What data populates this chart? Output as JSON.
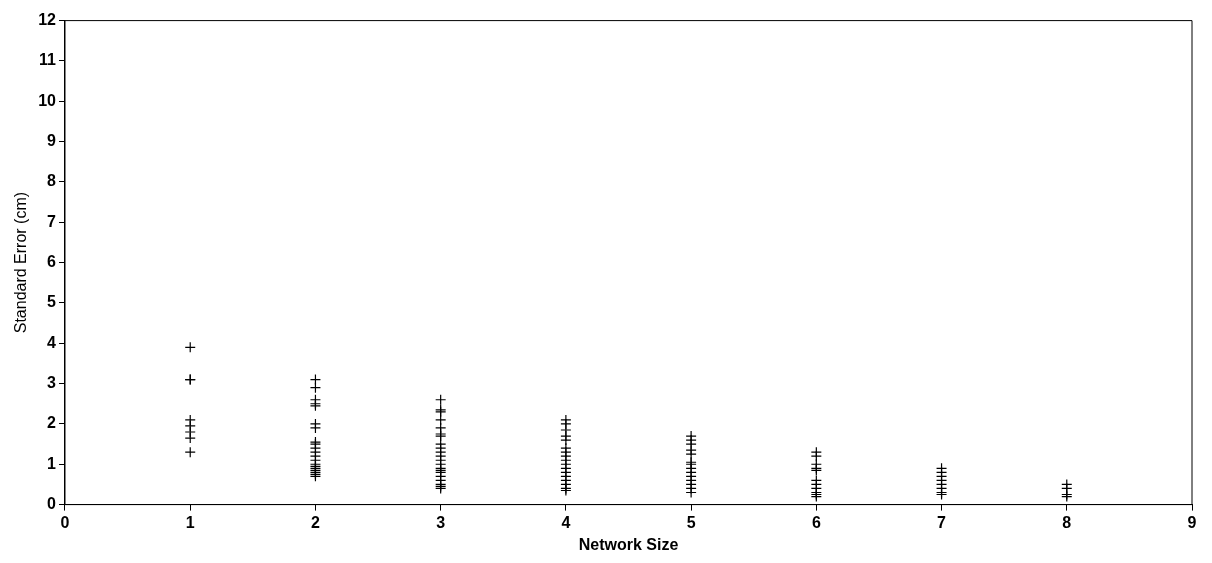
{
  "chart_data": {
    "type": "scatter",
    "xlabel": "Network Size",
    "ylabel": "Standard Error (cm)",
    "xlim": [
      0,
      9
    ],
    "xticks": [
      0,
      1,
      2,
      3,
      4,
      5,
      6,
      7,
      8,
      9
    ],
    "ylim": [
      0,
      12
    ],
    "yticks": [
      0,
      1,
      2,
      3,
      4,
      5,
      6,
      7,
      8,
      9,
      10,
      11,
      12
    ],
    "grid": false,
    "legend": false,
    "marker": "cross",
    "series": [
      {
        "color": "#000000",
        "x": [
          1,
          1,
          1,
          1,
          1,
          1,
          1,
          1,
          2,
          2,
          2,
          2,
          2,
          2,
          2,
          2,
          2,
          2,
          2,
          2,
          2,
          2,
          2,
          2,
          2,
          2,
          2,
          2,
          3,
          3,
          3,
          3,
          3,
          3,
          3,
          3,
          3,
          3,
          3,
          3,
          3,
          3,
          3,
          3,
          3,
          3,
          3,
          3,
          3,
          4,
          4,
          4,
          4,
          4,
          4,
          4,
          4,
          4,
          4,
          4,
          4,
          4,
          4,
          4,
          4,
          4,
          5,
          5,
          5,
          5,
          5,
          5,
          5,
          5,
          5,
          5,
          5,
          5,
          5,
          5,
          6,
          6,
          6,
          6,
          6,
          6,
          6,
          6,
          6,
          6,
          6,
          7,
          7,
          7,
          7,
          7,
          7,
          7,
          7,
          8,
          8,
          8,
          8
        ],
        "values": [
          3.9,
          3.1,
          3.1,
          2.1,
          1.95,
          1.8,
          1.65,
          1.3,
          3.1,
          2.9,
          2.6,
          2.5,
          2.45,
          2.0,
          1.9,
          1.55,
          1.5,
          1.4,
          1.3,
          1.2,
          1.1,
          1.0,
          0.95,
          0.9,
          0.85,
          0.8,
          0.75,
          0.7,
          2.6,
          2.35,
          2.3,
          2.1,
          1.9,
          1.75,
          1.7,
          1.5,
          1.4,
          1.3,
          1.2,
          1.1,
          1.0,
          0.9,
          0.85,
          0.8,
          0.7,
          0.6,
          0.5,
          0.45,
          0.4,
          2.1,
          2.0,
          1.85,
          1.7,
          1.6,
          1.4,
          1.3,
          1.2,
          1.1,
          1.0,
          0.9,
          0.8,
          0.7,
          0.6,
          0.5,
          0.4,
          0.35,
          1.7,
          1.6,
          1.5,
          1.35,
          1.25,
          1.05,
          1.0,
          0.9,
          0.8,
          0.7,
          0.6,
          0.5,
          0.4,
          0.3,
          1.3,
          1.2,
          1.0,
          0.9,
          0.85,
          0.6,
          0.5,
          0.4,
          0.3,
          0.25,
          0.2,
          0.9,
          0.8,
          0.7,
          0.6,
          0.5,
          0.4,
          0.3,
          0.25,
          0.5,
          0.4,
          0.25,
          0.2
        ]
      }
    ]
  }
}
